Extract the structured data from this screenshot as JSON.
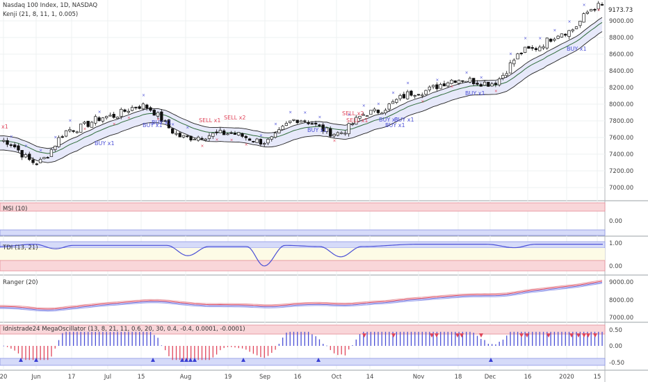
{
  "header": {
    "symbol_title": "Nasdaq 100 Index, 1D, NASDAQ",
    "indicator_1": "Kenji (21, 8, 11, 1, 0.005)"
  },
  "price_panel": {
    "last_price_label": "9173.73",
    "y_ticks": [
      "9000.00",
      "8800.00",
      "8600.00",
      "8400.00",
      "8200.00",
      "8000.00",
      "7800.00",
      "7600.00",
      "7400.00",
      "7200.00",
      "7000.00"
    ],
    "signals": [
      {
        "text": "x1",
        "type": "sell"
      },
      {
        "text": "BUY x1",
        "type": "buy"
      },
      {
        "text": "BUY x1",
        "type": "buy"
      },
      {
        "text": "BUY x1",
        "type": "buy"
      },
      {
        "text": "SELL x1",
        "type": "sell"
      },
      {
        "text": "SELL x2",
        "type": "sell"
      },
      {
        "text": "BUY x1",
        "type": "buy"
      },
      {
        "text": "SELL x2",
        "type": "sell"
      },
      {
        "text": "SELL x1",
        "type": "sell"
      },
      {
        "text": "BUY x1",
        "type": "buy"
      },
      {
        "text": "BUY x1",
        "type": "buy"
      },
      {
        "text": "BUY x1",
        "type": "buy"
      },
      {
        "text": "BUY x1",
        "type": "buy"
      },
      {
        "text": "BUY x1",
        "type": "buy"
      }
    ]
  },
  "msi_panel": {
    "title": "MSI (10)",
    "y_ticks": [
      "0.00"
    ]
  },
  "tdi_panel": {
    "title": "TDI (13, 21)",
    "y_ticks": [
      "1.00",
      "0.00"
    ]
  },
  "ranger_panel": {
    "title": "Ranger (20)",
    "y_ticks": [
      "9000.00",
      "8000.00",
      "7000.00"
    ]
  },
  "osc_panel": {
    "title": "Idnistrade24 MegaOscillator (13, 8, 21, 11, 0.6, 20, 30, 0.4, -0.4, 0.0001, -0.0001)",
    "y_ticks": [
      "0.50",
      "0.00",
      "-0.50"
    ]
  },
  "x_axis": {
    "labels": [
      "20",
      "Jun",
      "17",
      "Jul",
      "15",
      "Aug",
      "19",
      "Sep",
      "16",
      "Oct",
      "14",
      "Nov",
      "18",
      "Dec",
      "16",
      "2020",
      "15"
    ]
  },
  "colors": {
    "buy": "#4a4fd6",
    "sell": "#e0455a",
    "up_fill": "#ffffff",
    "down_fill": "#111111",
    "band_upper": "#e8b8bd",
    "band_lower": "#b9bff0",
    "ema": "#2e6b3a"
  },
  "chart_data": [
    {
      "type": "candlestick",
      "title": "Nasdaq 100 Index, 1D, NASDAQ",
      "ylim": [
        6850,
        9250
      ],
      "x": [
        "20",
        "Jun",
        "17",
        "Jul",
        "15",
        "Aug",
        "19",
        "Sep",
        "16",
        "Oct",
        "14",
        "Nov",
        "18",
        "Dec",
        "16",
        "2020",
        "15"
      ],
      "close_path": [
        [
          "20",
          7560
        ],
        [
          "Jun",
          7300
        ],
        [
          "17",
          7700
        ],
        [
          "Jul",
          7850
        ],
        [
          "15",
          7980
        ],
        [
          "Aug",
          7600
        ],
        [
          "19",
          7650
        ],
        [
          "Sep",
          7550
        ],
        [
          "16",
          7820
        ],
        [
          "Oct",
          7650
        ],
        [
          "14",
          7900
        ],
        [
          "Nov",
          8150
        ],
        [
          "18",
          8300
        ],
        [
          "Dec",
          8250
        ],
        [
          "16",
          8650
        ],
        [
          "2020",
          8870
        ],
        [
          "15",
          9173.73
        ]
      ]
    },
    {
      "type": "line",
      "title": "MSI (10)",
      "y_ticks": [
        0.0
      ]
    },
    {
      "type": "line",
      "title": "TDI (13, 21)",
      "ylim": [
        -0.05,
        1.05
      ]
    },
    {
      "type": "area",
      "title": "Ranger (20)",
      "ylim": [
        6800,
        9300
      ]
    },
    {
      "type": "bar",
      "title": "Idnistrade24 MegaOscillator (13, 8, 21, 11, 0.6, 20, 30, 0.4, -0.4, 0.0001, -0.0001)",
      "ylim": [
        -0.65,
        0.7
      ]
    }
  ]
}
